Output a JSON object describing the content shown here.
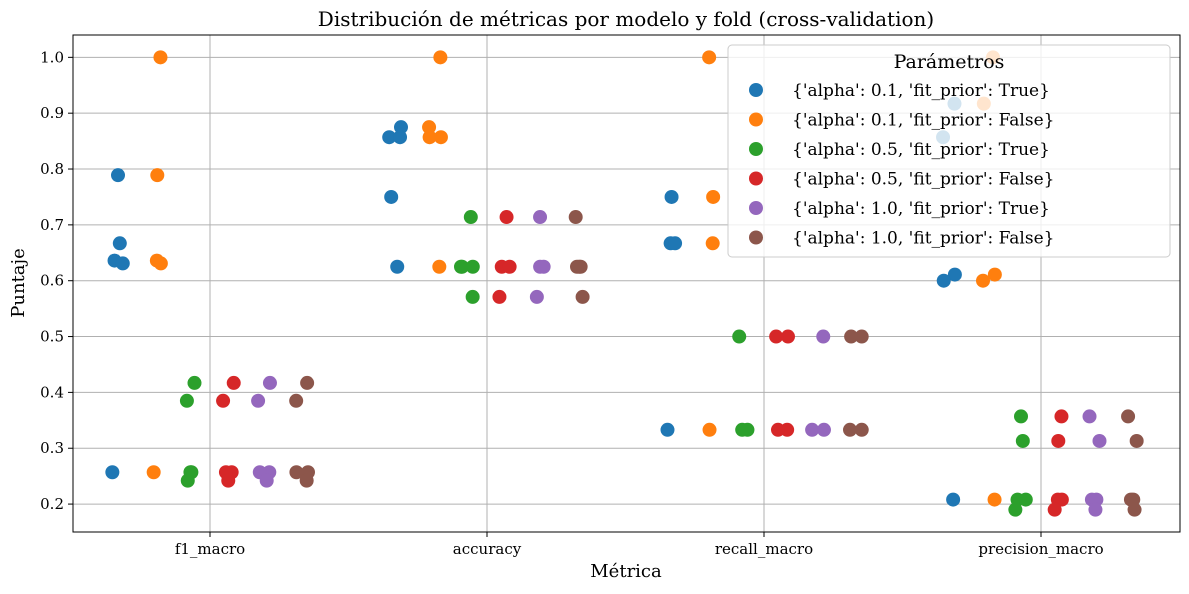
{
  "chart_data": {
    "type": "scatter",
    "title": "Distribución de métricas por modelo y fold (cross-validation)",
    "xlabel": "Métrica",
    "ylabel": "Puntaje",
    "categories": [
      "f1_macro",
      "accuracy",
      "recall_macro",
      "precision_macro"
    ],
    "ylim": [
      0.15,
      1.04
    ],
    "yticks": [
      0.2,
      0.3,
      0.4,
      0.5,
      0.6,
      0.7,
      0.8,
      0.9,
      1.0
    ],
    "ytick_labels": [
      "0.2",
      "0.3",
      "0.4",
      "0.5",
      "0.6",
      "0.7",
      "0.8",
      "0.9",
      "1.0"
    ],
    "grid": true,
    "legend": {
      "title": "Parámetros",
      "placement": "top-right"
    },
    "series": [
      {
        "name": "{'alpha': 0.1, 'fit_prior': True}",
        "color": "#1f77b4",
        "points": [
          {
            "category": "f1_macro",
            "y": 0.789
          },
          {
            "category": "f1_macro",
            "y": 0.667
          },
          {
            "category": "f1_macro",
            "y": 0.636
          },
          {
            "category": "f1_macro",
            "y": 0.631
          },
          {
            "category": "f1_macro",
            "y": 0.257
          },
          {
            "category": "accuracy",
            "y": 0.875
          },
          {
            "category": "accuracy",
            "y": 0.857
          },
          {
            "category": "accuracy",
            "y": 0.857
          },
          {
            "category": "accuracy",
            "y": 0.75
          },
          {
            "category": "accuracy",
            "y": 0.625
          },
          {
            "category": "recall_macro",
            "y": 0.75
          },
          {
            "category": "recall_macro",
            "y": 0.667
          },
          {
            "category": "recall_macro",
            "y": 0.667
          },
          {
            "category": "recall_macro",
            "y": 0.333
          },
          {
            "category": "precision_macro",
            "y": 0.917
          },
          {
            "category": "precision_macro",
            "y": 0.857
          },
          {
            "category": "precision_macro",
            "y": 0.611
          },
          {
            "category": "precision_macro",
            "y": 0.6
          },
          {
            "category": "precision_macro",
            "y": 0.208
          }
        ]
      },
      {
        "name": "{'alpha': 0.1, 'fit_prior': False}",
        "color": "#ff7f0e",
        "points": [
          {
            "category": "f1_macro",
            "y": 1.0
          },
          {
            "category": "f1_macro",
            "y": 0.789
          },
          {
            "category": "f1_macro",
            "y": 0.636
          },
          {
            "category": "f1_macro",
            "y": 0.631
          },
          {
            "category": "f1_macro",
            "y": 0.257
          },
          {
            "category": "accuracy",
            "y": 1.0
          },
          {
            "category": "accuracy",
            "y": 0.875
          },
          {
            "category": "accuracy",
            "y": 0.857
          },
          {
            "category": "accuracy",
            "y": 0.857
          },
          {
            "category": "accuracy",
            "y": 0.625
          },
          {
            "category": "recall_macro",
            "y": 1.0
          },
          {
            "category": "recall_macro",
            "y": 0.75
          },
          {
            "category": "recall_macro",
            "y": 0.667
          },
          {
            "category": "recall_macro",
            "y": 0.333
          },
          {
            "category": "precision_macro",
            "y": 1.0
          },
          {
            "category": "precision_macro",
            "y": 0.917
          },
          {
            "category": "precision_macro",
            "y": 0.611
          },
          {
            "category": "precision_macro",
            "y": 0.6
          },
          {
            "category": "precision_macro",
            "y": 0.208
          }
        ]
      },
      {
        "name": "{'alpha': 0.5, 'fit_prior': True}",
        "color": "#2ca02c",
        "points": [
          {
            "category": "f1_macro",
            "y": 0.417
          },
          {
            "category": "f1_macro",
            "y": 0.385
          },
          {
            "category": "f1_macro",
            "y": 0.257
          },
          {
            "category": "f1_macro",
            "y": 0.257
          },
          {
            "category": "f1_macro",
            "y": 0.242
          },
          {
            "category": "accuracy",
            "y": 0.714
          },
          {
            "category": "accuracy",
            "y": 0.625
          },
          {
            "category": "accuracy",
            "y": 0.625
          },
          {
            "category": "accuracy",
            "y": 0.625
          },
          {
            "category": "accuracy",
            "y": 0.571
          },
          {
            "category": "recall_macro",
            "y": 0.5
          },
          {
            "category": "recall_macro",
            "y": 0.333
          },
          {
            "category": "recall_macro",
            "y": 0.333
          },
          {
            "category": "precision_macro",
            "y": 0.357
          },
          {
            "category": "precision_macro",
            "y": 0.313
          },
          {
            "category": "precision_macro",
            "y": 0.208
          },
          {
            "category": "precision_macro",
            "y": 0.208
          },
          {
            "category": "precision_macro",
            "y": 0.19
          }
        ]
      },
      {
        "name": "{'alpha': 0.5, 'fit_prior': False}",
        "color": "#d62728",
        "points": [
          {
            "category": "f1_macro",
            "y": 0.417
          },
          {
            "category": "f1_macro",
            "y": 0.385
          },
          {
            "category": "f1_macro",
            "y": 0.257
          },
          {
            "category": "f1_macro",
            "y": 0.257
          },
          {
            "category": "f1_macro",
            "y": 0.242
          },
          {
            "category": "accuracy",
            "y": 0.714
          },
          {
            "category": "accuracy",
            "y": 0.625
          },
          {
            "category": "accuracy",
            "y": 0.625
          },
          {
            "category": "accuracy",
            "y": 0.571
          },
          {
            "category": "recall_macro",
            "y": 0.5
          },
          {
            "category": "recall_macro",
            "y": 0.5
          },
          {
            "category": "recall_macro",
            "y": 0.333
          },
          {
            "category": "recall_macro",
            "y": 0.333
          },
          {
            "category": "precision_macro",
            "y": 0.357
          },
          {
            "category": "precision_macro",
            "y": 0.313
          },
          {
            "category": "precision_macro",
            "y": 0.208
          },
          {
            "category": "precision_macro",
            "y": 0.208
          },
          {
            "category": "precision_macro",
            "y": 0.19
          }
        ]
      },
      {
        "name": "{'alpha': 1.0, 'fit_prior': True}",
        "color": "#9467bd",
        "points": [
          {
            "category": "f1_macro",
            "y": 0.417
          },
          {
            "category": "f1_macro",
            "y": 0.385
          },
          {
            "category": "f1_macro",
            "y": 0.257
          },
          {
            "category": "f1_macro",
            "y": 0.257
          },
          {
            "category": "f1_macro",
            "y": 0.242
          },
          {
            "category": "accuracy",
            "y": 0.714
          },
          {
            "category": "accuracy",
            "y": 0.625
          },
          {
            "category": "accuracy",
            "y": 0.625
          },
          {
            "category": "accuracy",
            "y": 0.571
          },
          {
            "category": "recall_macro",
            "y": 0.5
          },
          {
            "category": "recall_macro",
            "y": 0.333
          },
          {
            "category": "recall_macro",
            "y": 0.333
          },
          {
            "category": "precision_macro",
            "y": 0.357
          },
          {
            "category": "precision_macro",
            "y": 0.313
          },
          {
            "category": "precision_macro",
            "y": 0.208
          },
          {
            "category": "precision_macro",
            "y": 0.208
          },
          {
            "category": "precision_macro",
            "y": 0.19
          }
        ]
      },
      {
        "name": "{'alpha': 1.0, 'fit_prior': False}",
        "color": "#8c564b",
        "points": [
          {
            "category": "f1_macro",
            "y": 0.417
          },
          {
            "category": "f1_macro",
            "y": 0.385
          },
          {
            "category": "f1_macro",
            "y": 0.257
          },
          {
            "category": "f1_macro",
            "y": 0.257
          },
          {
            "category": "f1_macro",
            "y": 0.242
          },
          {
            "category": "accuracy",
            "y": 0.714
          },
          {
            "category": "accuracy",
            "y": 0.625
          },
          {
            "category": "accuracy",
            "y": 0.625
          },
          {
            "category": "accuracy",
            "y": 0.625
          },
          {
            "category": "accuracy",
            "y": 0.571
          },
          {
            "category": "recall_macro",
            "y": 0.5
          },
          {
            "category": "recall_macro",
            "y": 0.5
          },
          {
            "category": "recall_macro",
            "y": 0.333
          },
          {
            "category": "recall_macro",
            "y": 0.333
          },
          {
            "category": "precision_macro",
            "y": 0.357
          },
          {
            "category": "precision_macro",
            "y": 0.313
          },
          {
            "category": "precision_macro",
            "y": 0.208
          },
          {
            "category": "precision_macro",
            "y": 0.208
          },
          {
            "category": "precision_macro",
            "y": 0.19
          }
        ]
      }
    ]
  }
}
